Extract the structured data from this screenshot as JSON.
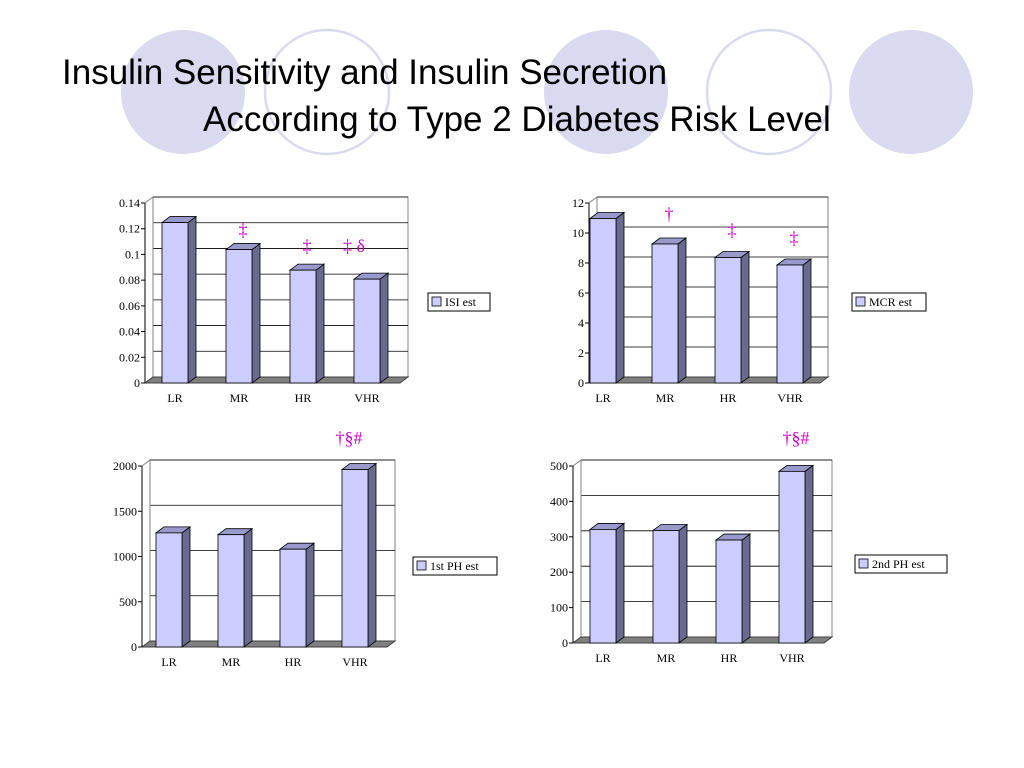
{
  "slide": {
    "title_line1": "Insulin Sensitivity and Insulin Secretion",
    "title_line2": "According to Type 2 Diabetes Risk Level"
  },
  "colors": {
    "bar_front": "#ccccff",
    "bar_side": "#6a6a90",
    "bar_top": "#9999cc",
    "marker": "#cc00cc",
    "decor_fill": "#d9d9ef",
    "decor_ring": "#d9d9ef"
  },
  "chart_data": [
    {
      "type": "bar",
      "categories": [
        "LR",
        "MR",
        "HR",
        "VHR"
      ],
      "series": [
        {
          "name": "ISI est",
          "values": [
            0.124,
            0.103,
            0.087,
            0.08
          ]
        }
      ],
      "ylim": [
        0,
        0.14
      ],
      "yticks": [
        "0",
        "0.02",
        "0.04",
        "0.06",
        "0.08",
        "0.1",
        "0.12",
        "0.14"
      ],
      "annotations": [
        "",
        "‡",
        "‡",
        "‡ δ"
      ],
      "legend_position": "right",
      "grid": true,
      "style": "3d"
    },
    {
      "type": "bar",
      "categories": [
        "LR",
        "MR",
        "HR",
        "VHR"
      ],
      "series": [
        {
          "name": "MCR est",
          "values": [
            10.9,
            9.2,
            8.3,
            7.8
          ]
        }
      ],
      "ylim": [
        0,
        12
      ],
      "yticks": [
        "0",
        "2",
        "4",
        "6",
        "8",
        "10",
        "12"
      ],
      "annotations": [
        "",
        "†",
        "‡",
        "‡"
      ],
      "legend_position": "right",
      "grid": true,
      "style": "3d"
    },
    {
      "type": "bar",
      "categories": [
        "LR",
        "MR",
        "HR",
        "VHR"
      ],
      "series": [
        {
          "name": "1st PH est",
          "values": [
            1250,
            1230,
            1070,
            1950
          ]
        }
      ],
      "ylim": [
        0,
        2000
      ],
      "yticks": [
        "0",
        "500",
        "1000",
        "1500",
        "2000"
      ],
      "annotations": [
        "",
        "",
        "",
        "†§#"
      ],
      "legend_position": "right",
      "grid": true,
      "style": "3d"
    },
    {
      "type": "bar",
      "categories": [
        "LR",
        "MR",
        "HR",
        "VHR"
      ],
      "series": [
        {
          "name": "2nd PH est",
          "values": [
            318,
            315,
            288,
            482
          ]
        }
      ],
      "ylim": [
        0,
        500
      ],
      "yticks": [
        "0",
        "100",
        "200",
        "300",
        "400",
        "500"
      ],
      "annotations": [
        "",
        "",
        "",
        "†§#"
      ],
      "legend_position": "right",
      "grid": true,
      "style": "3d"
    }
  ]
}
